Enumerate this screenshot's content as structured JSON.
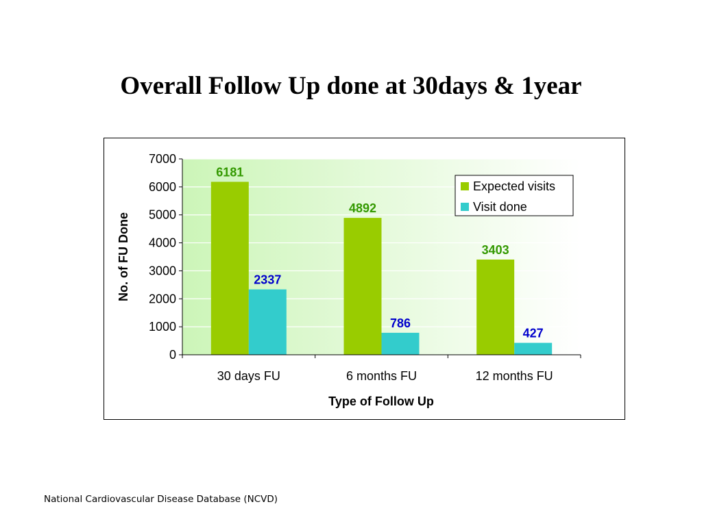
{
  "slide": {
    "title": "Overall Follow Up done at 30days & 1year",
    "footer": "National Cardiovascular Disease Database (NCVD)"
  },
  "colors": {
    "expected": "#99cc00",
    "done": "#33cccc",
    "expected_label": "#339900",
    "done_label": "#0000cc",
    "plot_gradient_start": "#ccf5b8",
    "plot_gradient_end": "#ffffff"
  },
  "chart_data": {
    "type": "bar",
    "title": "",
    "xlabel": "Type of Follow Up",
    "ylabel": "No. of FU Done",
    "categories": [
      "30 days FU",
      "6 months FU",
      "12 months FU"
    ],
    "series": [
      {
        "name": "Expected visits",
        "values": [
          6181,
          4892,
          3403
        ],
        "data_labels": [
          "6181",
          "4892",
          "3403"
        ]
      },
      {
        "name": "Visit done",
        "values": [
          2337,
          786,
          427
        ],
        "data_labels": [
          "2337",
          "786",
          "427"
        ]
      }
    ],
    "yticks": [
      "0",
      "1000",
      "2000",
      "3000",
      "4000",
      "5000",
      "6000",
      "7000"
    ],
    "ylim": [
      0,
      7000
    ],
    "grid": true,
    "legend_position": "top-right"
  }
}
